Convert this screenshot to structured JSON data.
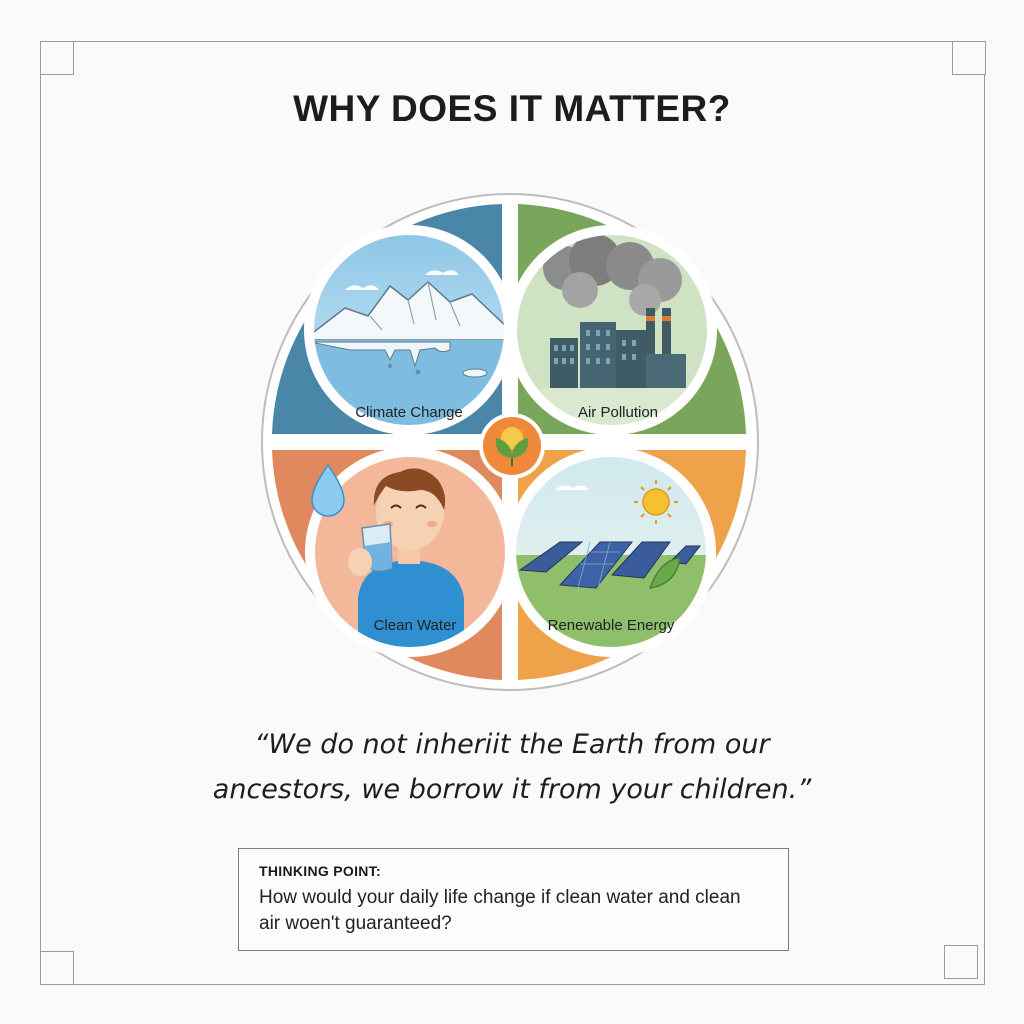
{
  "title": "WHY DOES IT MATTER?",
  "panels": {
    "climate": {
      "label": "Climate Change",
      "accent": "#4a86a8"
    },
    "air": {
      "label": "Air Pollution",
      "accent": "#7aa65c"
    },
    "water": {
      "label": "Clean Water",
      "accent": "#e0895f"
    },
    "energy": {
      "label": "Renewable Energy",
      "accent": "#eea24a"
    }
  },
  "center_icon": "sun-with-leaves-icon",
  "quote": {
    "line1": "“We do not inheriit the Earth from our",
    "line2": "ancestors, we borrow it from your children.”"
  },
  "thinking_point": {
    "heading": "THINKING POINT:",
    "line1": "How would your daily life change if clean water and clean",
    "line2": "air woen't guaranteed?"
  }
}
